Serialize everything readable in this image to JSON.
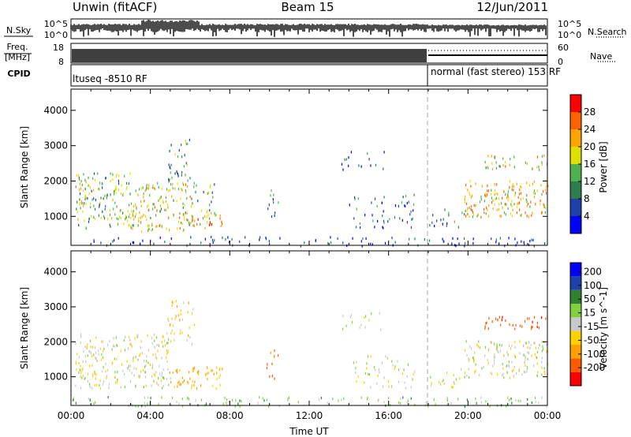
{
  "header": {
    "radar": "Unwin (fitACF)",
    "beam": "Beam 15",
    "date": "12/Jun/2011"
  },
  "nsky_panel": {
    "left_label": "N.Sky",
    "left_ticks": [
      "10^5",
      "10^0"
    ],
    "right_ticks": [
      "10^5",
      "10^0"
    ],
    "right_label": "N.Search"
  },
  "freq_panel": {
    "label_line1": "Freq.",
    "label_line2": "[MHz]",
    "left_ticks": [
      "18",
      "8"
    ],
    "right_ticks": [
      "60",
      "0"
    ],
    "right_label": "Nave"
  },
  "cpid_panel": {
    "label": "CPID",
    "segments": [
      {
        "label": "ltuseq -8510 RF",
        "start_hour": 0
      },
      {
        "label": "normal (fast stereo) 153 RF",
        "start_hour": 18
      }
    ]
  },
  "colors": {
    "power_scale": [
      "#0000ff",
      "#1e40a8",
      "#2e7d4f",
      "#50b050",
      "#e0e000",
      "#ffa500",
      "#ff6000",
      "#ff0000"
    ],
    "velocity_scale": [
      "#ff0000",
      "#ff5a00",
      "#ffa000",
      "#ffd000",
      "#c8c8c8",
      "#80d040",
      "#308030",
      "#1e40a8",
      "#0000ff"
    ]
  },
  "chart_data": [
    {
      "type": "heatmap",
      "name": "power",
      "ylabel": "Slant Range [km]",
      "xlabel": "",
      "ylim": [
        180,
        4600
      ],
      "xlim": [
        0,
        24
      ],
      "y_ticks": [
        1000,
        2000,
        3000,
        4000
      ],
      "colorbar": {
        "label": "Power [dB]",
        "range": [
          0,
          32
        ],
        "ticks": [
          4,
          8,
          12,
          16,
          20,
          24,
          28
        ]
      },
      "scatter_regions": [
        {
          "t0": 0.2,
          "t1": 3.0,
          "r0": 700,
          "r1": 2250,
          "v": 14,
          "density": 0.55
        },
        {
          "t0": 3.0,
          "t1": 6.2,
          "r0": 600,
          "r1": 2000,
          "v": 18,
          "density": 0.55
        },
        {
          "t0": 4.8,
          "t1": 6.0,
          "r0": 1900,
          "r1": 3200,
          "v": 10,
          "density": 0.35
        },
        {
          "t0": 5.8,
          "t1": 7.6,
          "r0": 700,
          "r1": 1150,
          "v": 22,
          "density": 0.6
        },
        {
          "t0": 6.0,
          "t1": 7.2,
          "r0": 1150,
          "r1": 2000,
          "v": 12,
          "density": 0.3
        },
        {
          "t0": 9.8,
          "t1": 10.5,
          "r0": 950,
          "r1": 1800,
          "v": 8,
          "density": 0.3
        },
        {
          "t0": 13.6,
          "t1": 15.8,
          "r0": 2350,
          "r1": 2900,
          "v": 6,
          "density": 0.2
        },
        {
          "t0": 14.0,
          "t1": 17.3,
          "r0": 700,
          "r1": 1650,
          "v": 7,
          "density": 0.25
        },
        {
          "t0": 18.0,
          "t1": 19.8,
          "r0": 700,
          "r1": 1300,
          "v": 6,
          "density": 0.25
        },
        {
          "t0": 19.8,
          "t1": 24.0,
          "r0": 1000,
          "r1": 2050,
          "v": 20,
          "density": 0.6
        },
        {
          "t0": 20.8,
          "t1": 24.0,
          "r0": 2350,
          "r1": 2750,
          "v": 18,
          "density": 0.45
        },
        {
          "t0": 0.0,
          "t1": 24.0,
          "r0": 180,
          "r1": 450,
          "v": 5,
          "density": 0.25
        }
      ]
    },
    {
      "type": "heatmap",
      "name": "velocity",
      "ylabel": "Slant Range [km]",
      "xlabel": "Time UT",
      "ylim": [
        180,
        4600
      ],
      "xlim": [
        0,
        24
      ],
      "x_ticks": [
        0,
        4,
        8,
        12,
        16,
        20,
        24
      ],
      "x_tick_labels": [
        "00:00",
        "04:00",
        "08:00",
        "12:00",
        "16:00",
        "20:00",
        "00:00"
      ],
      "y_ticks": [
        1000,
        2000,
        3000,
        4000
      ],
      "colorbar": {
        "label": "Velocity [m s^-1]",
        "range": [
          -250,
          250
        ],
        "ticks": [
          200,
          100,
          50,
          15,
          -15,
          -50,
          -100,
          -200
        ],
        "tick_labels": [
          "200",
          "100",
          "50",
          "15",
          "-15",
          "-50",
          "-100",
          "-200"
        ]
      },
      "scatter_regions": [
        {
          "t0": 0.2,
          "t1": 5.0,
          "r0": 700,
          "r1": 2250,
          "v": 0,
          "density": 0.5
        },
        {
          "t0": 5.0,
          "t1": 7.6,
          "r0": 700,
          "r1": 1300,
          "v": -60,
          "density": 0.55
        },
        {
          "t0": 4.8,
          "t1": 6.2,
          "r0": 1900,
          "r1": 3200,
          "v": -30,
          "density": 0.35
        },
        {
          "t0": 9.8,
          "t1": 10.5,
          "r0": 950,
          "r1": 1800,
          "v": -120,
          "density": 0.3
        },
        {
          "t0": 13.6,
          "t1": 15.8,
          "r0": 2350,
          "r1": 2900,
          "v": 0,
          "density": 0.2
        },
        {
          "t0": 14.0,
          "t1": 17.3,
          "r0": 700,
          "r1": 1650,
          "v": 0,
          "density": 0.25
        },
        {
          "t0": 18.0,
          "t1": 19.8,
          "r0": 700,
          "r1": 1300,
          "v": 0,
          "density": 0.25
        },
        {
          "t0": 19.8,
          "t1": 24.0,
          "r0": 1000,
          "r1": 2050,
          "v": 0,
          "density": 0.55
        },
        {
          "t0": 20.8,
          "t1": 24.0,
          "r0": 2400,
          "r1": 2750,
          "v": -180,
          "density": 0.5
        },
        {
          "t0": 0.0,
          "t1": 24.0,
          "r0": 180,
          "r1": 450,
          "v": 30,
          "density": 0.3
        }
      ]
    }
  ]
}
